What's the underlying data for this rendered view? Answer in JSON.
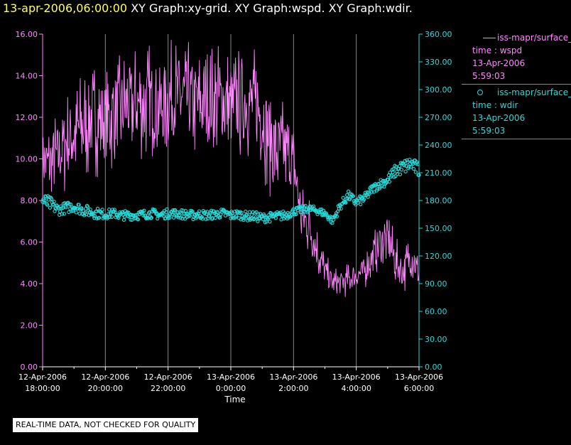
{
  "header": {
    "timestamp": "13-apr-2006,06:00:00",
    "titles": "XY Graph:xy-grid.  XY Graph:wspd.  XY Graph:wdir."
  },
  "legend": {
    "series1": {
      "name": "iss-mapr/surface_m",
      "line2": "time : wspd",
      "line3": "13-Apr-2006",
      "line4": "5:59:03"
    },
    "series2": {
      "name": "iss-mapr/surface_m",
      "line2": "time : wdir",
      "line3": "13-Apr-2006",
      "line4": "5:59:03"
    }
  },
  "notice": "REAL-TIME DATA, NOT CHECKED FOR QUALITY",
  "colors": {
    "wspd": "#ff88ff",
    "wdir": "#22dddd",
    "grid": "#888888",
    "background": "#000000"
  },
  "chart_data": {
    "type": "line",
    "xlabel": "Time",
    "x_ticks": [
      {
        "t": 0,
        "line1": "12-Apr-2006",
        "line2": "18:00:00"
      },
      {
        "t": 2,
        "line1": "12-Apr-2006",
        "line2": "20:00:00"
      },
      {
        "t": 4,
        "line1": "12-Apr-2006",
        "line2": "22:00:00"
      },
      {
        "t": 6,
        "line1": "13-Apr-2006",
        "line2": "0:00:00"
      },
      {
        "t": 8,
        "line1": "13-Apr-2006",
        "line2": "2:00:00"
      },
      {
        "t": 10,
        "line1": "13-Apr-2006",
        "line2": "4:00:00"
      },
      {
        "t": 12,
        "line1": "13-Apr-2006",
        "line2": "6:00:00"
      }
    ],
    "xlim": [
      0,
      12
    ],
    "y_left": {
      "ylim": [
        0,
        16
      ],
      "ticks": [
        "0.00",
        "2.00",
        "4.00",
        "6.00",
        "8.00",
        "10.00",
        "12.00",
        "14.00",
        "16.00"
      ]
    },
    "y_right": {
      "ylim": [
        0,
        360
      ],
      "ticks": [
        "0.00",
        "30.00",
        "60.00",
        "90.00",
        "120.00",
        "150.00",
        "180.00",
        "210.00",
        "240.00",
        "270.00",
        "300.00",
        "330.00",
        "360.00"
      ]
    },
    "grid": "vertical",
    "series": [
      {
        "name": "iss-mapr/surface_m wspd",
        "axis": "left",
        "style": "line",
        "x": [
          0,
          0.25,
          0.5,
          0.75,
          1,
          1.25,
          1.5,
          1.75,
          2,
          2.25,
          2.5,
          2.75,
          3,
          3.25,
          3.5,
          3.75,
          4,
          4.25,
          4.5,
          4.75,
          5,
          5.25,
          5.5,
          5.75,
          6,
          6.25,
          6.5,
          6.75,
          7,
          7.25,
          7.5,
          7.75,
          8,
          8.25,
          8.5,
          8.75,
          9,
          9.25,
          9.5,
          9.75,
          10,
          10.25,
          10.5,
          10.75,
          11,
          11.25,
          11.5,
          11.75,
          12
        ],
        "y": [
          10.2,
          9.6,
          10.2,
          10.8,
          11.2,
          11.6,
          11.8,
          12.0,
          11.8,
          12.2,
          12.4,
          12.6,
          12.6,
          12.8,
          12.8,
          12.6,
          12.8,
          13.0,
          13.0,
          12.8,
          12.6,
          12.6,
          12.8,
          12.8,
          12.4,
          12.6,
          12.8,
          12.6,
          12.0,
          11.0,
          10.4,
          10.4,
          9.8,
          7.2,
          6.8,
          5.6,
          4.6,
          4.0,
          4.0,
          4.2,
          4.4,
          4.6,
          5.2,
          6.0,
          6.2,
          5.0,
          4.6,
          5.4,
          4.4
        ],
        "amplitude": [
          1.0,
          1.4,
          1.5,
          1.6,
          1.6,
          1.7,
          1.8,
          1.8,
          1.8,
          1.8,
          1.8,
          1.8,
          1.8,
          1.8,
          1.8,
          1.8,
          1.8,
          1.8,
          1.8,
          1.8,
          1.8,
          1.8,
          1.8,
          1.8,
          1.8,
          1.8,
          1.8,
          1.8,
          1.8,
          1.8,
          1.8,
          1.4,
          1.2,
          1.0,
          1.0,
          0.8,
          0.6,
          0.5,
          0.5,
          0.5,
          0.5,
          0.6,
          0.7,
          0.8,
          0.9,
          0.8,
          0.7,
          0.8,
          0.6
        ]
      },
      {
        "name": "iss-mapr/surface_m wdir",
        "axis": "right",
        "style": "scatter",
        "x": [
          0,
          0.25,
          0.5,
          0.75,
          1,
          1.25,
          1.5,
          1.75,
          2,
          2.25,
          2.5,
          2.75,
          3,
          3.25,
          3.5,
          3.75,
          4,
          4.25,
          4.5,
          4.75,
          5,
          5.25,
          5.5,
          5.75,
          6,
          6.25,
          6.5,
          6.75,
          7,
          7.25,
          7.5,
          7.75,
          8,
          8.25,
          8.5,
          8.75,
          9,
          9.25,
          9.5,
          9.75,
          10,
          10.25,
          10.5,
          10.75,
          11,
          11.25,
          11.5,
          11.75,
          12
        ],
        "y": [
          180,
          176,
          170,
          172,
          174,
          170,
          168,
          166,
          165,
          166,
          164,
          164,
          164,
          165,
          166,
          164,
          166,
          166,
          165,
          164,
          165,
          164,
          165,
          166,
          164,
          165,
          163,
          163,
          161,
          162,
          163,
          164,
          168,
          170,
          171,
          169,
          166,
          158,
          175,
          185,
          178,
          182,
          192,
          198,
          202,
          212,
          216,
          220,
          212
        ],
        "spread": [
          8,
          8,
          6,
          6,
          6,
          6,
          6,
          6,
          5,
          5,
          5,
          5,
          5,
          5,
          5,
          5,
          5,
          5,
          5,
          5,
          5,
          5,
          5,
          5,
          5,
          5,
          5,
          5,
          5,
          5,
          5,
          5,
          4,
          4,
          4,
          4,
          4,
          4,
          5,
          5,
          5,
          5,
          5,
          5,
          6,
          7,
          8,
          8,
          8
        ]
      }
    ]
  }
}
